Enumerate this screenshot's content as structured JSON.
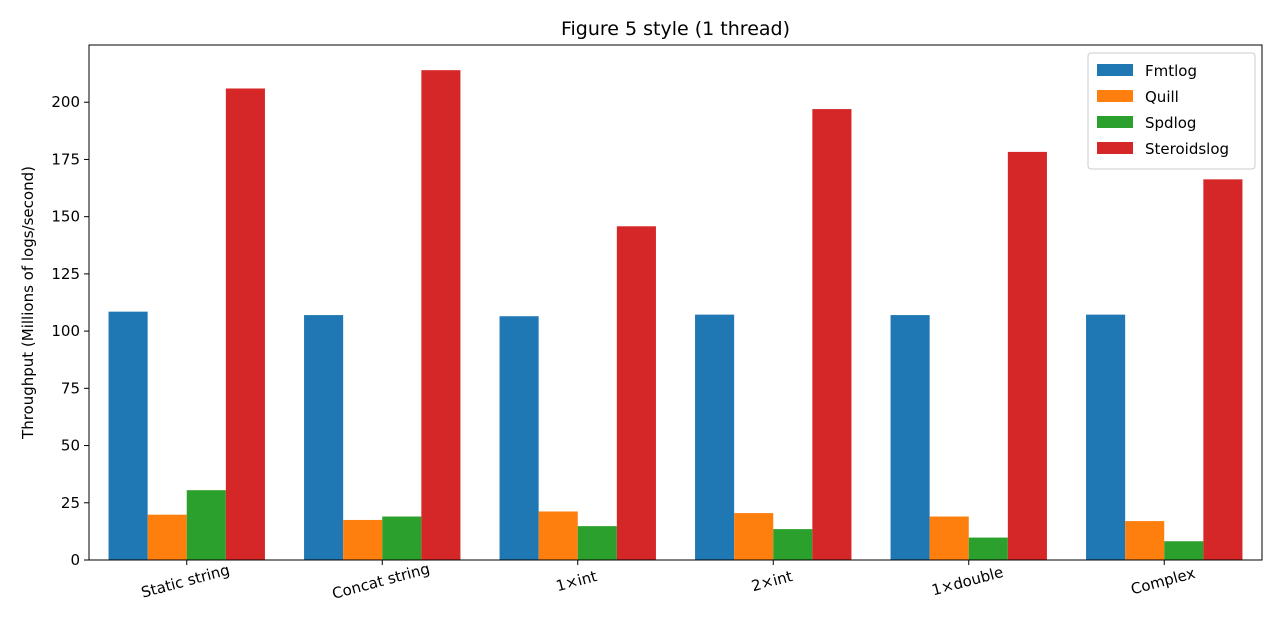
{
  "chart_data": {
    "type": "bar",
    "title": "Figure 5 style (1 thread)",
    "xlabel": "",
    "ylabel": "Throughput (Millions of logs/second)",
    "categories": [
      "Static string",
      "Concat string",
      "1×int",
      "2×int",
      "1×double",
      "Complex"
    ],
    "series": [
      {
        "name": "Fmtlog",
        "color": "#1f77b4",
        "values": [
          108.5,
          107,
          106.5,
          107.2,
          107,
          107.2
        ]
      },
      {
        "name": "Quill",
        "color": "#ff7f0e",
        "values": [
          19.8,
          17.5,
          21.2,
          20.5,
          19,
          17
        ]
      },
      {
        "name": "Spdlog",
        "color": "#2ca02c",
        "values": [
          30.5,
          19,
          14.8,
          13.5,
          9.8,
          8.2
        ]
      },
      {
        "name": "Steroidslog",
        "color": "#d62728",
        "values": [
          206,
          214,
          145.8,
          197,
          178.3,
          166.3
        ]
      }
    ],
    "ylim": [
      0,
      225
    ],
    "yticks": [
      0,
      25,
      50,
      75,
      100,
      125,
      150,
      175,
      200
    ],
    "legend": "top-right",
    "grid": false
  }
}
